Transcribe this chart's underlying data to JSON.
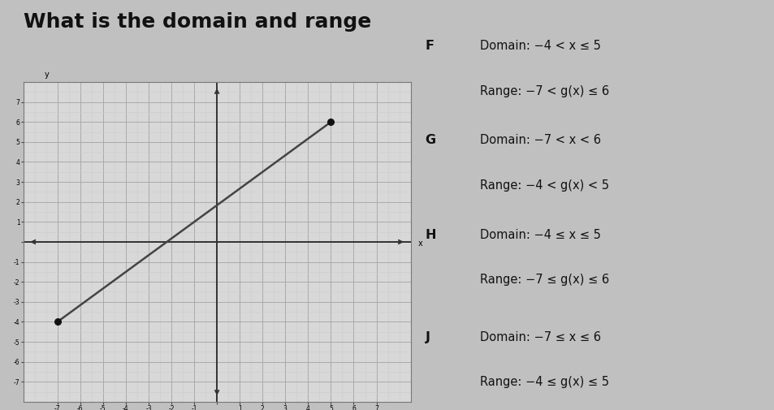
{
  "title": "What is the domain and range",
  "title_fontsize": 18,
  "title_fontweight": "bold",
  "line_x": [
    -7,
    5
  ],
  "line_y": [
    -4,
    6
  ],
  "line_color": "#444444",
  "line_width": 1.8,
  "dot_color": "#111111",
  "dot_size": 30,
  "xlim": [
    -8.5,
    8.5
  ],
  "ylim": [
    -8.0,
    8.0
  ],
  "major_xticks": [
    -7,
    -6,
    -5,
    -4,
    -3,
    -2,
    -1,
    1,
    2,
    3,
    4,
    5,
    6,
    7
  ],
  "major_yticks": [
    -7,
    -6,
    -5,
    -4,
    -3,
    -2,
    -1,
    1,
    2,
    3,
    4,
    5,
    6,
    7
  ],
  "grid_major_color": "#aaaaaa",
  "grid_minor_color": "#cccccc",
  "bg_color": "#d8d8d8",
  "panel_bg": "#c8c8c8",
  "fig_bg": "#c0c0c0",
  "options": [
    {
      "letter": "F",
      "line1": "Domain: −4 < x ≤ 5",
      "line2": "Range: −7 < g(x) ≤ 6"
    },
    {
      "letter": "G",
      "line1": "Domain: −7 < x < 6",
      "line2": "Range: −4 < g(x) < 5"
    },
    {
      "letter": "H",
      "line1": "Domain: −4 ≤ x ≤ 5",
      "line2": "Range: −7 ≤ g(x) ≤ 6"
    },
    {
      "letter": "J",
      "line1": "Domain: −7 ≤ x ≤ 6",
      "line2": "Range: −4 ≤ g(x) ≤ 5"
    }
  ],
  "option_fontsize": 10.5,
  "letter_fontsize": 11.5,
  "letter_fontweight": "bold"
}
